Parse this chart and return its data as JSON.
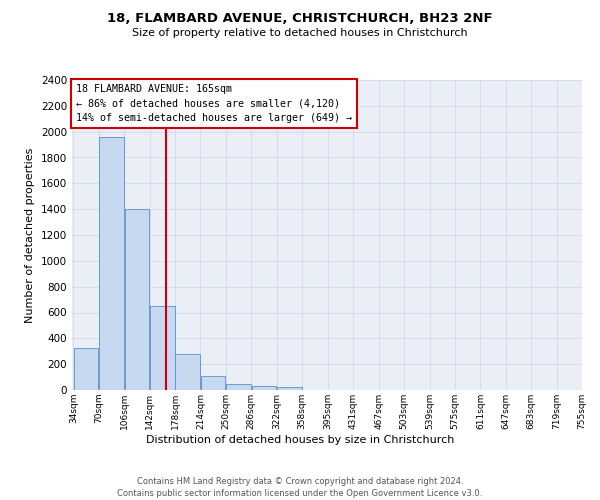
{
  "title": "18, FLAMBARD AVENUE, CHRISTCHURCH, BH23 2NF",
  "subtitle": "Size of property relative to detached houses in Christchurch",
  "xlabel": "Distribution of detached houses by size in Christchurch",
  "ylabel": "Number of detached properties",
  "bar_color": "#c6d9f0",
  "bar_edge_color": "#5b8fc9",
  "bin_edges": [
    34,
    70,
    106,
    142,
    178,
    214,
    250,
    286,
    322,
    358,
    395,
    431,
    467,
    503,
    539,
    575,
    611,
    647,
    683,
    719,
    755
  ],
  "bar_heights": [
    325,
    1960,
    1400,
    650,
    280,
    105,
    50,
    30,
    20,
    0,
    0,
    0,
    0,
    0,
    0,
    0,
    0,
    0,
    0,
    0
  ],
  "property_size": 165,
  "vline_color": "#cc0000",
  "annotation_title": "18 FLAMBARD AVENUE: 165sqm",
  "annotation_line1": "← 86% of detached houses are smaller (4,120)",
  "annotation_line2": "14% of semi-detached houses are larger (649) →",
  "annotation_box_color": "#cc0000",
  "ylim": [
    0,
    2400
  ],
  "yticks": [
    0,
    200,
    400,
    600,
    800,
    1000,
    1200,
    1400,
    1600,
    1800,
    2000,
    2200,
    2400
  ],
  "x_tick_labels": [
    "34sqm",
    "70sqm",
    "106sqm",
    "142sqm",
    "178sqm",
    "214sqm",
    "250sqm",
    "286sqm",
    "322sqm",
    "358sqm",
    "395sqm",
    "431sqm",
    "467sqm",
    "503sqm",
    "539sqm",
    "575sqm",
    "611sqm",
    "647sqm",
    "683sqm",
    "719sqm",
    "755sqm"
  ],
  "grid_color": "#d0d8e8",
  "background_color": "#eaeff7",
  "footer_line1": "Contains HM Land Registry data © Crown copyright and database right 2024.",
  "footer_line2": "Contains public sector information licensed under the Open Government Licence v3.0."
}
